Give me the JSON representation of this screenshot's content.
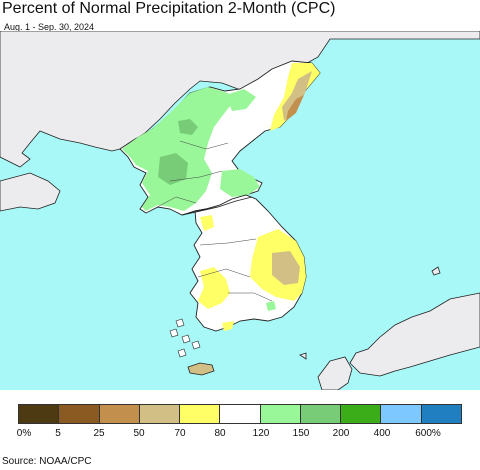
{
  "title": "Percent of Normal Precipitation 2-Month (CPC)",
  "subtitle": "Aug. 1 - Sep. 30, 2024",
  "source": "Source: NOAA/CPC",
  "colors": {
    "ocean": "#a8f8f8",
    "foreign_land": "#ecebee",
    "border": "#222222"
  },
  "legend": {
    "colors": [
      "#4e3a12",
      "#8b5a22",
      "#c28f4c",
      "#d1bf86",
      "#ffff66",
      "#ffffff",
      "#99f799",
      "#78cc78",
      "#3aad18",
      "#7cc8ff",
      "#1f7fc0"
    ],
    "labels": [
      "0%",
      "5",
      "25",
      "50",
      "70",
      "80",
      "120",
      "150",
      "200",
      "400",
      "600%"
    ]
  }
}
